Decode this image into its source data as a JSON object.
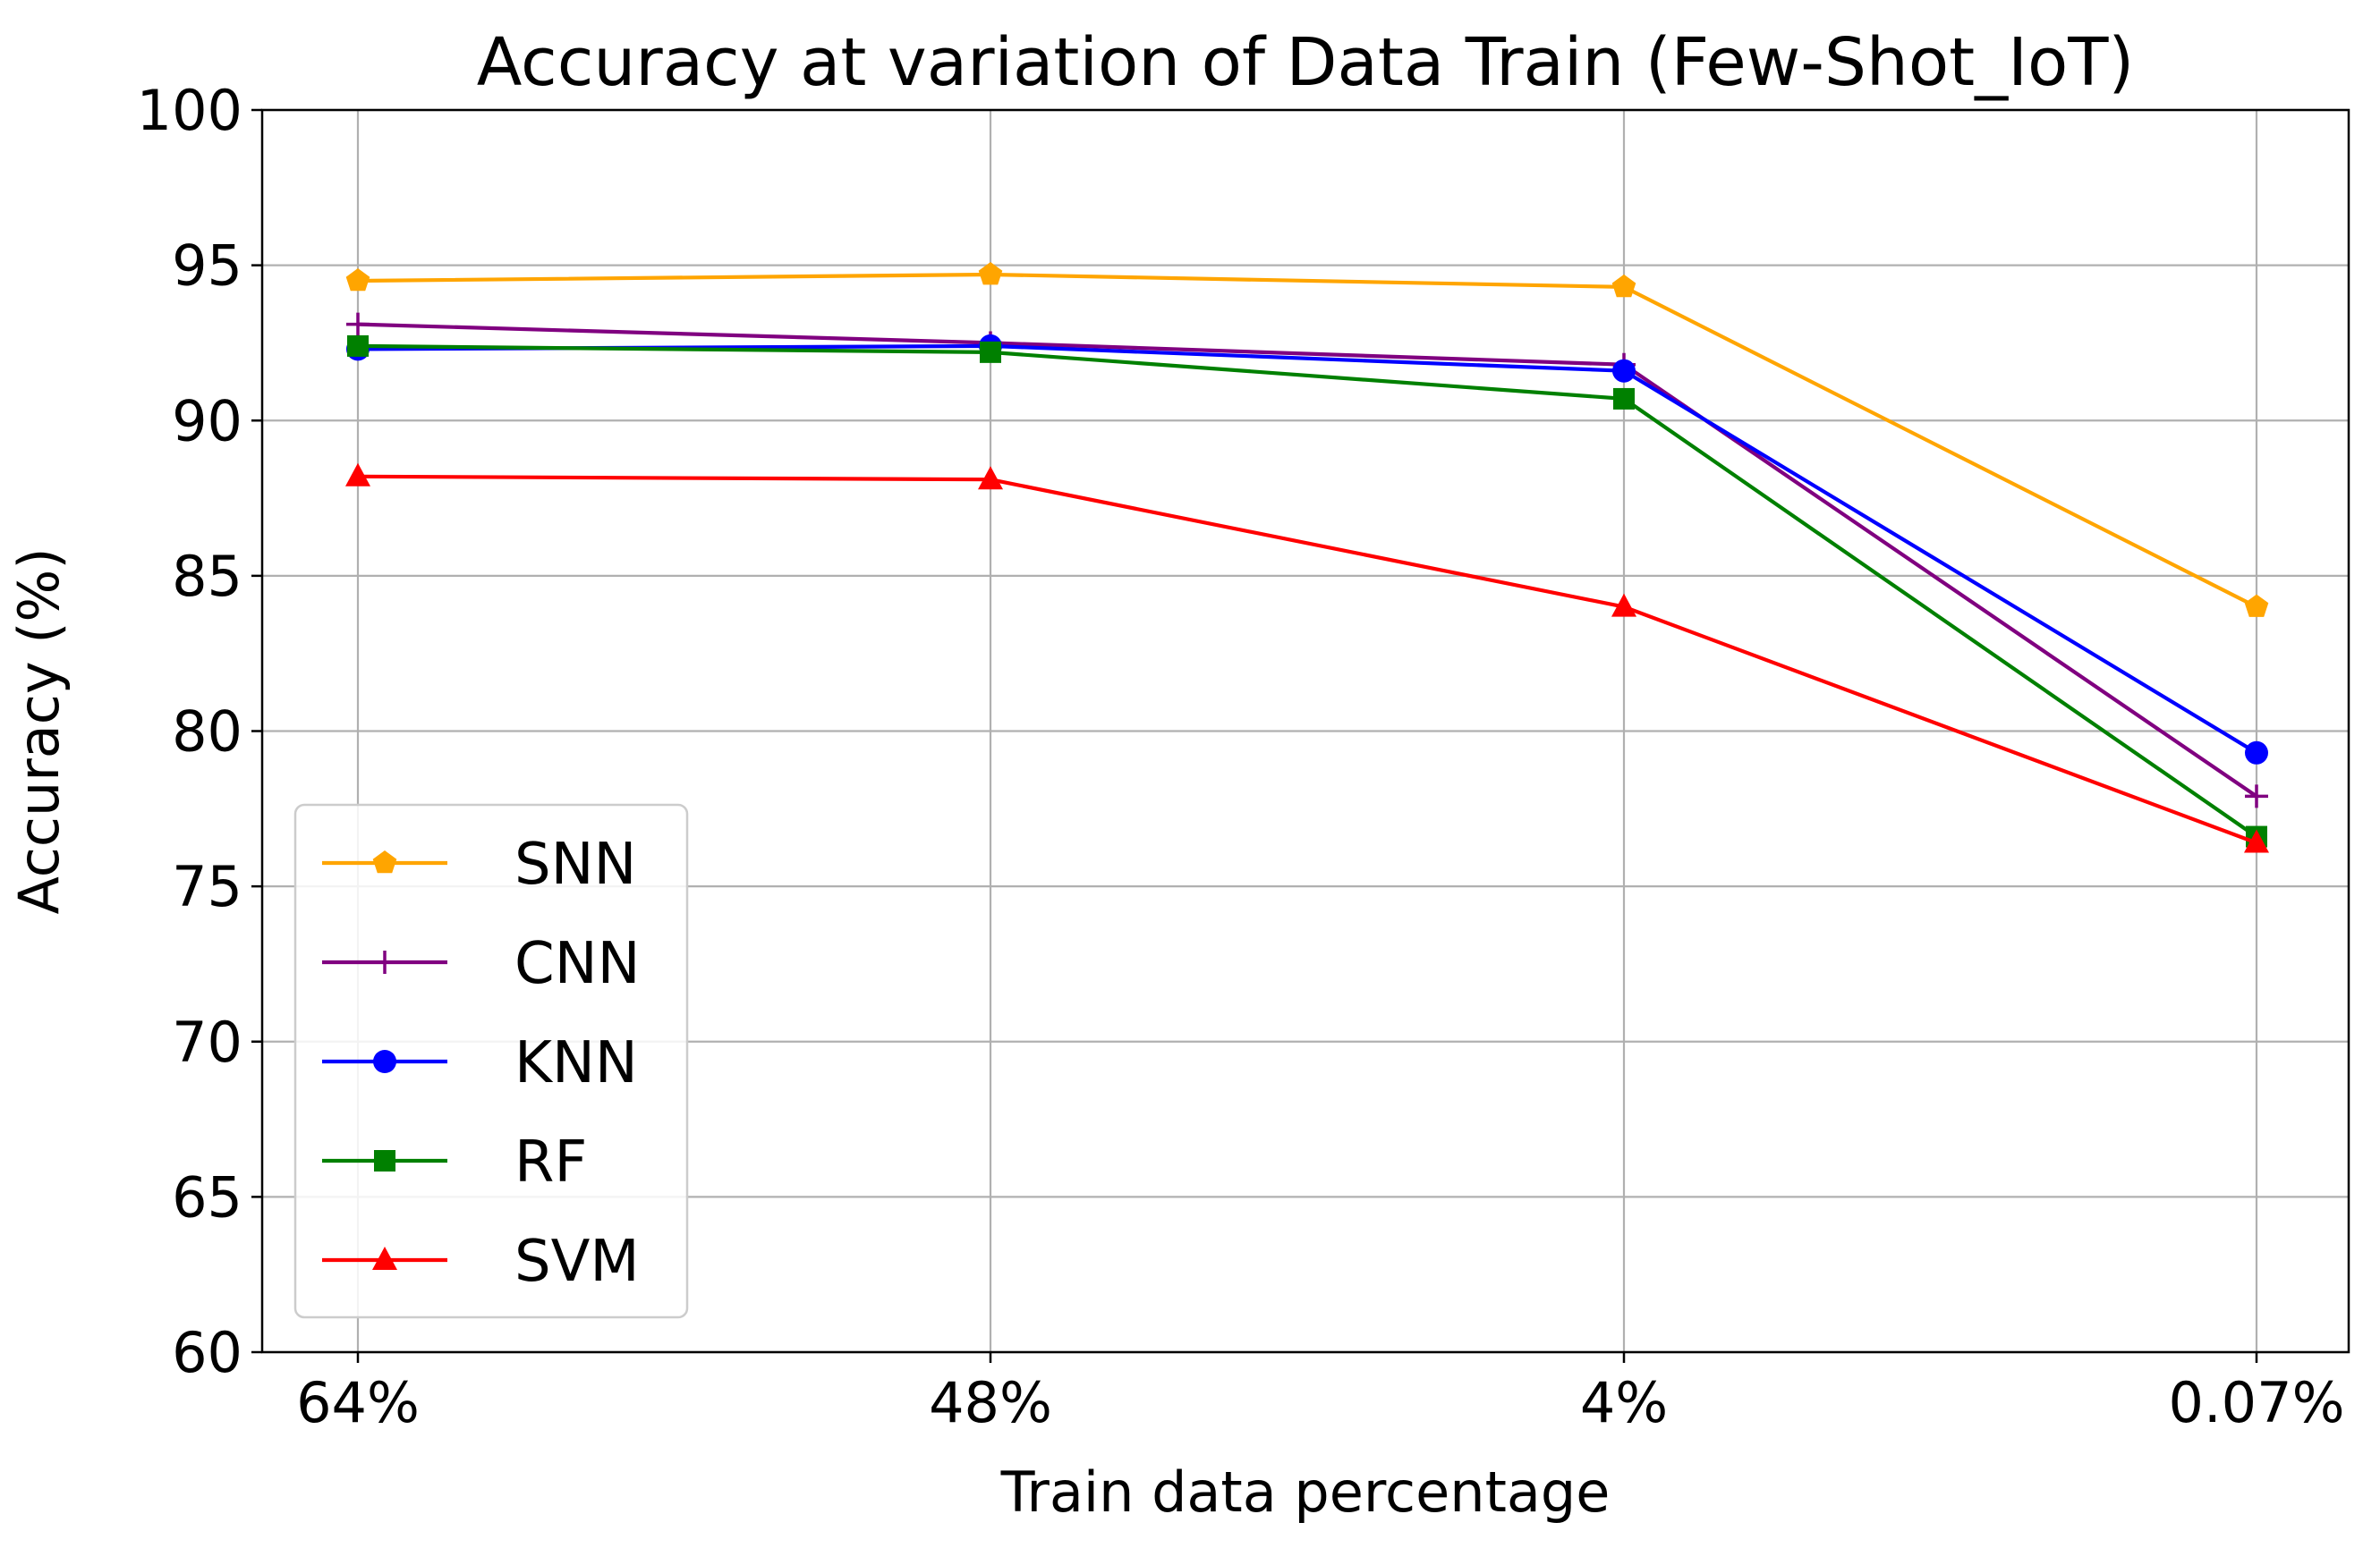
{
  "chart_data": {
    "type": "line",
    "title": "Accuracy at variation of Data Train (Few-Shot_IoT)",
    "xlabel": "Train data percentage",
    "ylabel": "Accuracy (%)",
    "categories": [
      "64%",
      "48%",
      "4%",
      "0.07%"
    ],
    "ylim": [
      60,
      100
    ],
    "yticks": [
      60,
      65,
      70,
      75,
      80,
      85,
      90,
      95,
      100
    ],
    "grid": true,
    "legend_position": "lower-left",
    "series": [
      {
        "name": "SNN",
        "color": "#ffa500",
        "marker": "pentagon",
        "values": [
          94.5,
          94.7,
          94.3,
          84.0
        ]
      },
      {
        "name": "CNN",
        "color": "#800080",
        "marker": "plus",
        "values": [
          93.1,
          92.5,
          91.8,
          77.9
        ]
      },
      {
        "name": "KNN",
        "color": "#0000ff",
        "marker": "circle",
        "values": [
          92.3,
          92.4,
          91.6,
          79.3
        ]
      },
      {
        "name": "RF",
        "color": "#008000",
        "marker": "square",
        "values": [
          92.4,
          92.2,
          90.7,
          76.6
        ]
      },
      {
        "name": "SVM",
        "color": "#ff0000",
        "marker": "triangle",
        "values": [
          88.2,
          88.1,
          84.0,
          76.4
        ]
      }
    ]
  }
}
